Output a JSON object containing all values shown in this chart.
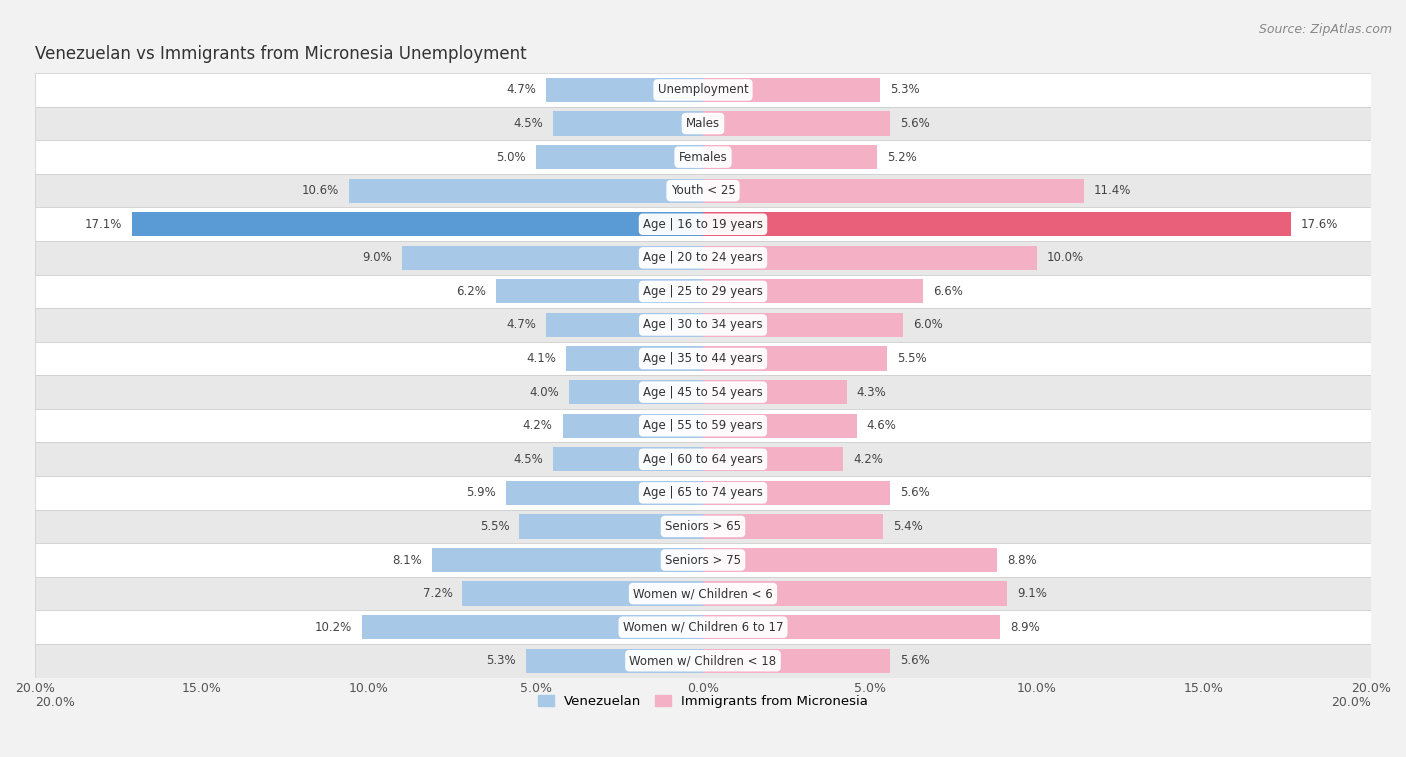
{
  "title": "Venezuelan vs Immigrants from Micronesia Unemployment",
  "source": "Source: ZipAtlas.com",
  "categories": [
    "Unemployment",
    "Males",
    "Females",
    "Youth < 25",
    "Age | 16 to 19 years",
    "Age | 20 to 24 years",
    "Age | 25 to 29 years",
    "Age | 30 to 34 years",
    "Age | 35 to 44 years",
    "Age | 45 to 54 years",
    "Age | 55 to 59 years",
    "Age | 60 to 64 years",
    "Age | 65 to 74 years",
    "Seniors > 65",
    "Seniors > 75",
    "Women w/ Children < 6",
    "Women w/ Children 6 to 17",
    "Women w/ Children < 18"
  ],
  "venezuelan": [
    4.7,
    4.5,
    5.0,
    10.6,
    17.1,
    9.0,
    6.2,
    4.7,
    4.1,
    4.0,
    4.2,
    4.5,
    5.9,
    5.5,
    8.1,
    7.2,
    10.2,
    5.3
  ],
  "micronesia": [
    5.3,
    5.6,
    5.2,
    11.4,
    17.6,
    10.0,
    6.6,
    6.0,
    5.5,
    4.3,
    4.6,
    4.2,
    5.6,
    5.4,
    8.8,
    9.1,
    8.9,
    5.6
  ],
  "venezuelan_color": "#a8c8e8",
  "micronesia_color": "#f4b0c4",
  "venezuelan_highlight_color": "#5b9bd5",
  "micronesia_highlight_color": "#e8607a",
  "highlight_row": 4,
  "bar_height": 0.72,
  "xlim": 20.0,
  "background_color": "#f2f2f2",
  "row_color_odd": "#ffffff",
  "row_color_even": "#e8e8e8",
  "label_bg_color": "#ffffff",
  "legend_venezuelan": "Venezuelan",
  "legend_micronesia": "Immigrants from Micronesia",
  "tick_vals": [
    -20,
    -15,
    -10,
    -5,
    0,
    5,
    10,
    15,
    20
  ],
  "label_fontsize": 8.5,
  "value_fontsize": 8.5,
  "title_fontsize": 12,
  "source_fontsize": 9
}
